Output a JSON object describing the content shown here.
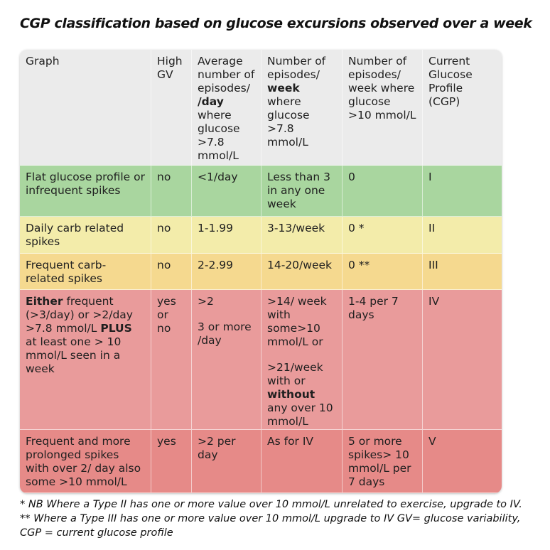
{
  "title": "CGP classification based on glucose excursions observed over a week",
  "colors": {
    "header": "#ebebeb",
    "row1": "#a9d69f",
    "row2": "#f3ecaa",
    "row3": "#f5d98f",
    "row4": "#e99b9b",
    "row5": "#e68a88"
  },
  "table": {
    "rows": [
      {
        "name": "header",
        "cells": [
          [
            [
              {
                "t": "Graph"
              }
            ]
          ],
          [
            [
              {
                "t": "High GV"
              }
            ]
          ],
          [
            [
              {
                "t": "Average number of episodes/ "
              },
              {
                "t": "/day",
                "b": true
              },
              {
                "t": " where glucose >7.8 mmol/L"
              }
            ]
          ],
          [
            [
              {
                "t": "Number of episodes/ "
              },
              {
                "t": "week",
                "b": true
              },
              {
                "t": " where glucose >7.8 mmol/L"
              }
            ]
          ],
          [
            [
              {
                "t": "Number of episodes/ week where glucose >10 mmol/L"
              }
            ]
          ],
          [
            [
              {
                "t": "Current Glucose Profile (CGP)"
              }
            ]
          ]
        ]
      },
      {
        "name": "cgp-i",
        "cells": [
          [
            [
              {
                "t": "Flat glucose profile or infrequent spikes"
              }
            ]
          ],
          [
            [
              {
                "t": "no"
              }
            ]
          ],
          [
            [
              {
                "t": "<1/day"
              }
            ]
          ],
          [
            [
              {
                "t": "Less than 3 in any one week"
              }
            ]
          ],
          [
            [
              {
                "t": "0"
              }
            ]
          ],
          [
            [
              {
                "t": "I"
              }
            ]
          ]
        ]
      },
      {
        "name": "cgp-ii",
        "cells": [
          [
            [
              {
                "t": "Daily carb related spikes"
              }
            ]
          ],
          [
            [
              {
                "t": "no"
              }
            ]
          ],
          [
            [
              {
                "t": "1-1.99"
              }
            ]
          ],
          [
            [
              {
                "t": "3-13/week"
              }
            ]
          ],
          [
            [
              {
                "t": "0 *"
              }
            ]
          ],
          [
            [
              {
                "t": "II"
              }
            ]
          ]
        ]
      },
      {
        "name": "cgp-iii",
        "cells": [
          [
            [
              {
                "t": "Frequent carb-related spikes"
              }
            ]
          ],
          [
            [
              {
                "t": "no"
              }
            ]
          ],
          [
            [
              {
                "t": "2-2.99"
              }
            ]
          ],
          [
            [
              {
                "t": "14-20/week"
              }
            ]
          ],
          [
            [
              {
                "t": "0 **"
              }
            ]
          ],
          [
            [
              {
                "t": "III"
              }
            ]
          ]
        ]
      },
      {
        "name": "cgp-iv",
        "cells": [
          [
            [
              {
                "t": "Either",
                "b": true
              },
              {
                "t": " frequent (>3/day) or >2/day >7.8 mmol/L "
              },
              {
                "t": "PLUS",
                "b": true
              },
              {
                "t": " at least one > 10 mmol/L seen in a week"
              }
            ]
          ],
          [
            [
              {
                "t": "yes or no"
              }
            ]
          ],
          [
            [
              {
                "t": ">2"
              }
            ],
            [
              {
                "t": "3 or more /day"
              }
            ]
          ],
          [
            [
              {
                "t": ">14/ week with some>10 mmol/L or"
              }
            ],
            [
              {
                "t": ">21/week with or "
              },
              {
                "t": "without",
                "b": true
              },
              {
                "t": " any over 10 mmol/L"
              }
            ]
          ],
          [
            [
              {
                "t": "1-4 per 7 days"
              }
            ]
          ],
          [
            [
              {
                "t": "IV"
              }
            ]
          ]
        ]
      },
      {
        "name": "cgp-v",
        "cells": [
          [
            [
              {
                "t": "Frequent and more prolonged spikes with over 2/ day also some >10 mmol/L"
              }
            ]
          ],
          [
            [
              {
                "t": "yes"
              }
            ]
          ],
          [
            [
              {
                "t": ">2 per day"
              }
            ]
          ],
          [
            [
              {
                "t": "As for IV"
              }
            ]
          ],
          [
            [
              {
                "t": "5 or more spikes> 10 mmol/L per 7 days"
              }
            ]
          ],
          [
            [
              {
                "t": "V"
              }
            ]
          ]
        ]
      }
    ]
  },
  "footnote": "* NB Where a Type II has one or more value over 10 mmol/L unrelated to exercise, upgrade to IV. ** Where a Type III has one or more value over 10 mmol/L upgrade to IV GV= glucose variability, CGP = current glucose profile"
}
